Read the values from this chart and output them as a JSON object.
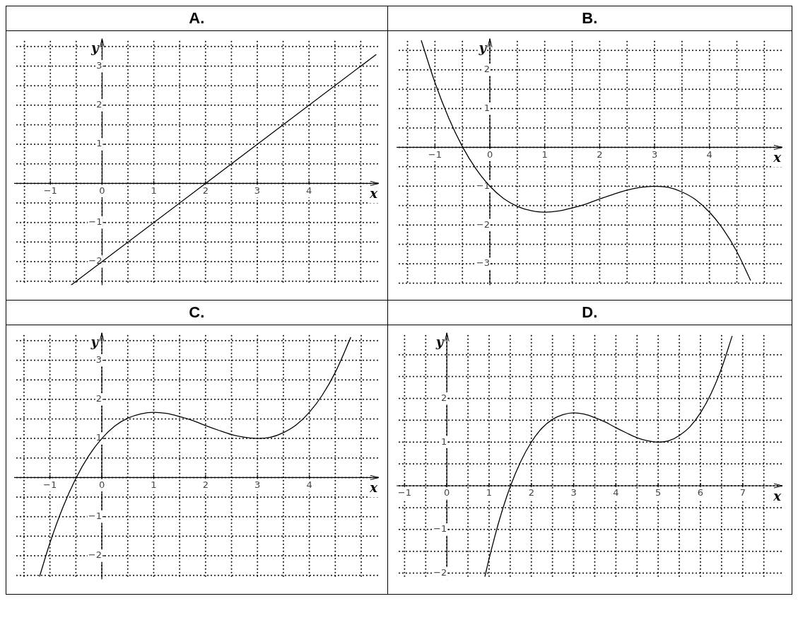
{
  "chart_data": [
    {
      "type": "line",
      "title": "A.",
      "xlabel": "x",
      "ylabel": "y",
      "grid": true,
      "xlim": [
        -1.7,
        5.35
      ],
      "ylim": [
        -2.6,
        3.7
      ],
      "xticks": [
        {
          "value": -1.5,
          "label": null
        },
        -1,
        {
          "value": -0.5,
          "label": null
        },
        0,
        {
          "value": 0.5,
          "label": null
        },
        1,
        {
          "value": 1.5,
          "label": null
        },
        2,
        {
          "value": 2.5,
          "label": null
        },
        3,
        {
          "value": 3.5,
          "label": null
        },
        4,
        {
          "value": 4.5,
          "label": null
        },
        {
          "value": 5,
          "label": null
        }
      ],
      "yticks": [
        {
          "value": -2.5,
          "label": null
        },
        -2,
        {
          "value": -1.5,
          "label": null
        },
        -1,
        {
          "value": -0.5,
          "label": null
        },
        {
          "value": 0,
          "label": null
        },
        {
          "value": 0.5,
          "label": null
        },
        1,
        {
          "value": 1.5,
          "label": null
        },
        2,
        {
          "value": 2.5,
          "label": null
        },
        3,
        {
          "value": 3.5,
          "label": null
        }
      ],
      "series": [
        {
          "color": "#000000",
          "x": [
            -0.6,
            5.3
          ],
          "values": [
            -2.6,
            3.3
          ]
        }
      ]
    },
    {
      "type": "line",
      "title": "B.",
      "xlabel": "x",
      "ylabel": "y",
      "grid": true,
      "xlim": [
        -1.7,
        5.33
      ],
      "ylim": [
        -3.55,
        2.8
      ],
      "xticks": [
        {
          "value": -1.5,
          "label": null
        },
        -1,
        {
          "value": -0.5,
          "label": null
        },
        0,
        {
          "value": 0.5,
          "label": null
        },
        1,
        {
          "value": 1.5,
          "label": null
        },
        2,
        {
          "value": 2.5,
          "label": null
        },
        3,
        {
          "value": 3.5,
          "label": null
        },
        4,
        {
          "value": 4.5,
          "label": null
        },
        {
          "value": 5,
          "label": null
        }
      ],
      "yticks": [
        {
          "value": -3.5,
          "label": null
        },
        -3,
        {
          "value": -2.5,
          "label": null
        },
        -2,
        {
          "value": -1.5,
          "label": null
        },
        -1,
        {
          "value": -0.5,
          "label": null
        },
        {
          "value": 0,
          "label": null
        },
        {
          "value": 0.5,
          "label": null
        },
        1,
        {
          "value": 1.5,
          "label": null
        },
        2,
        {
          "value": 2.5,
          "label": null
        }
      ],
      "series": [
        {
          "color": "#000000",
          "x": [
            -1.25,
            -1,
            -0.75,
            -0.5,
            -0.25,
            0,
            0.25,
            0.5,
            0.75,
            1,
            1.25,
            1.5,
            1.75,
            2,
            2.25,
            2.5,
            2.75,
            3,
            3.25,
            3.5,
            3.75,
            4,
            4.25,
            4.5,
            4.75
          ],
          "values": [
            2.76,
            1.67,
            0.76,
            0.02,
            -0.56,
            -1,
            -1.32,
            -1.52,
            -1.63,
            -1.67,
            -1.64,
            -1.56,
            -1.46,
            -1.33,
            -1.21,
            -1.1,
            -1.03,
            -1,
            -1.03,
            -1.15,
            -1.35,
            -1.67,
            -2.11,
            -2.69,
            -3.43
          ]
        }
      ]
    },
    {
      "type": "line",
      "title": "C.",
      "xlabel": "x",
      "ylabel": "y",
      "grid": true,
      "xlim": [
        -1.69,
        5.34
      ],
      "ylim": [
        -2.6,
        3.7
      ],
      "xticks": [
        {
          "value": -1.5,
          "label": null
        },
        -1,
        {
          "value": -0.5,
          "label": null
        },
        0,
        {
          "value": 0.5,
          "label": null
        },
        1,
        {
          "value": 1.5,
          "label": null
        },
        2,
        {
          "value": 2.5,
          "label": null
        },
        3,
        {
          "value": 3.5,
          "label": null
        },
        4,
        {
          "value": 4.5,
          "label": null
        },
        {
          "value": 5,
          "label": null
        }
      ],
      "yticks": [
        {
          "value": -2.5,
          "label": null
        },
        -2,
        {
          "value": -1.5,
          "label": null
        },
        -1,
        {
          "value": -0.5,
          "label": null
        },
        {
          "value": 0,
          "label": null
        },
        {
          "value": 0.5,
          "label": null
        },
        1,
        {
          "value": 1.5,
          "label": null
        },
        2,
        {
          "value": 2.5,
          "label": null
        },
        3,
        {
          "value": 3.5,
          "label": null
        }
      ],
      "series": [
        {
          "color": "#000000",
          "x": [
            -1.2,
            -1,
            -0.75,
            -0.5,
            -0.25,
            0,
            0.25,
            0.5,
            0.75,
            1,
            1.25,
            1.5,
            1.75,
            2,
            2.25,
            2.5,
            2.75,
            3,
            3.25,
            3.5,
            3.75,
            4,
            4.25,
            4.5,
            4.8
          ],
          "values": [
            -2.53,
            -1.67,
            -0.76,
            -0.02,
            0.56,
            1,
            1.32,
            1.52,
            1.63,
            1.67,
            1.64,
            1.56,
            1.46,
            1.33,
            1.21,
            1.1,
            1.03,
            1,
            1.03,
            1.15,
            1.35,
            1.67,
            2.11,
            2.69,
            3.59
          ]
        }
      ]
    },
    {
      "type": "line",
      "title": "D.",
      "xlabel": "x",
      "ylabel": "y",
      "grid": true,
      "xlim": [
        -1.19,
        7.94
      ],
      "ylim": [
        -2.14,
        3.5
      ],
      "xticks": [
        -1,
        {
          "value": -0.5,
          "label": null
        },
        0,
        {
          "value": 0.5,
          "label": null
        },
        1,
        {
          "value": 1.5,
          "label": null
        },
        2,
        {
          "value": 2.5,
          "label": null
        },
        3,
        {
          "value": 3.5,
          "label": null
        },
        4,
        {
          "value": 4.5,
          "label": null
        },
        5,
        {
          "value": 5.5,
          "label": null
        },
        6,
        {
          "value": 6.5,
          "label": null
        },
        7,
        {
          "value": 7.5,
          "label": null
        }
      ],
      "yticks": [
        -2,
        {
          "value": -1.5,
          "label": null
        },
        -1,
        {
          "value": -0.5,
          "label": null
        },
        {
          "value": 0,
          "label": null
        },
        {
          "value": 0.5,
          "label": null
        },
        1,
        {
          "value": 1.5,
          "label": null
        },
        2,
        {
          "value": 2.5,
          "label": null
        },
        {
          "value": 3,
          "label": null
        }
      ],
      "series": [
        {
          "color": "#000000",
          "x": [
            0.9,
            1,
            1.25,
            1.5,
            1.75,
            2,
            2.25,
            2.5,
            2.75,
            3,
            3.25,
            3.5,
            3.75,
            4,
            4.25,
            4.5,
            4.75,
            5,
            5.25,
            5.5,
            5.75,
            6,
            6.25,
            6.5,
            6.75
          ],
          "values": [
            -2.08,
            -1.67,
            -0.76,
            -0.02,
            0.56,
            1,
            1.32,
            1.52,
            1.63,
            1.67,
            1.64,
            1.56,
            1.46,
            1.33,
            1.21,
            1.1,
            1.03,
            1,
            1.03,
            1.15,
            1.35,
            1.67,
            2.11,
            2.69,
            3.43
          ]
        }
      ]
    }
  ]
}
